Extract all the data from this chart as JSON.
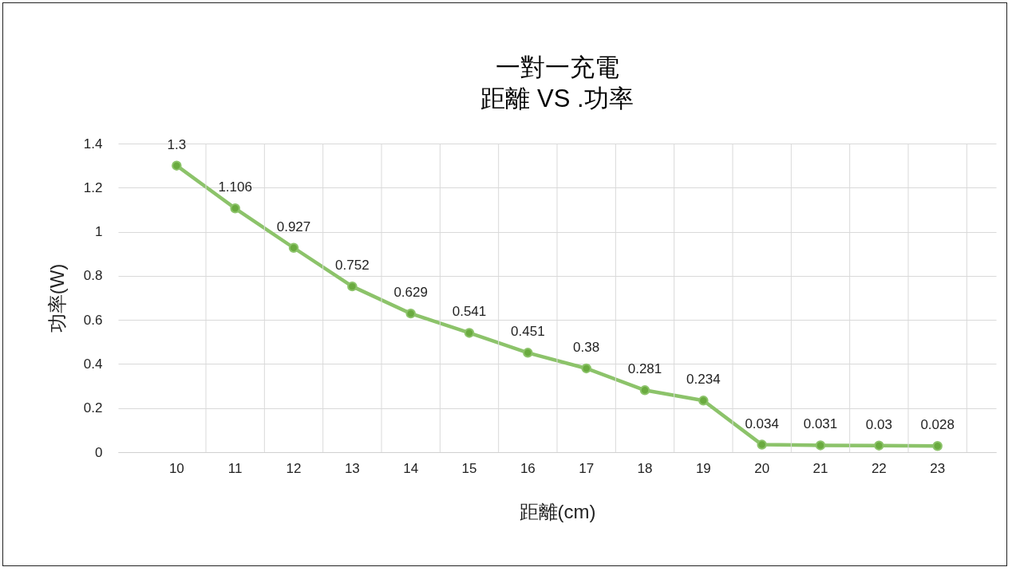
{
  "chart_data": {
    "type": "line",
    "title": "一對一充電",
    "subtitle": "距離 VS .功率",
    "xlabel": "距離(cm)",
    "ylabel": "功率(W)",
    "categories": [
      "10",
      "11",
      "12",
      "13",
      "14",
      "15",
      "16",
      "17",
      "18",
      "19",
      "20",
      "21",
      "22",
      "23"
    ],
    "series": [
      {
        "color": "#8cc36a",
        "values": [
          1.3,
          1.106,
          0.927,
          0.752,
          0.629,
          0.541,
          0.451,
          0.38,
          0.281,
          0.234,
          0.034,
          0.031,
          0.03,
          0.028
        ]
      }
    ],
    "ylim": [
      0,
      1.4
    ],
    "yticks": [
      0,
      0.2,
      0.4,
      0.6,
      0.8,
      1,
      1.2,
      1.4
    ],
    "grid": true,
    "marker": "circle",
    "line_style": "solid",
    "data_labels": true,
    "legend": false
  }
}
